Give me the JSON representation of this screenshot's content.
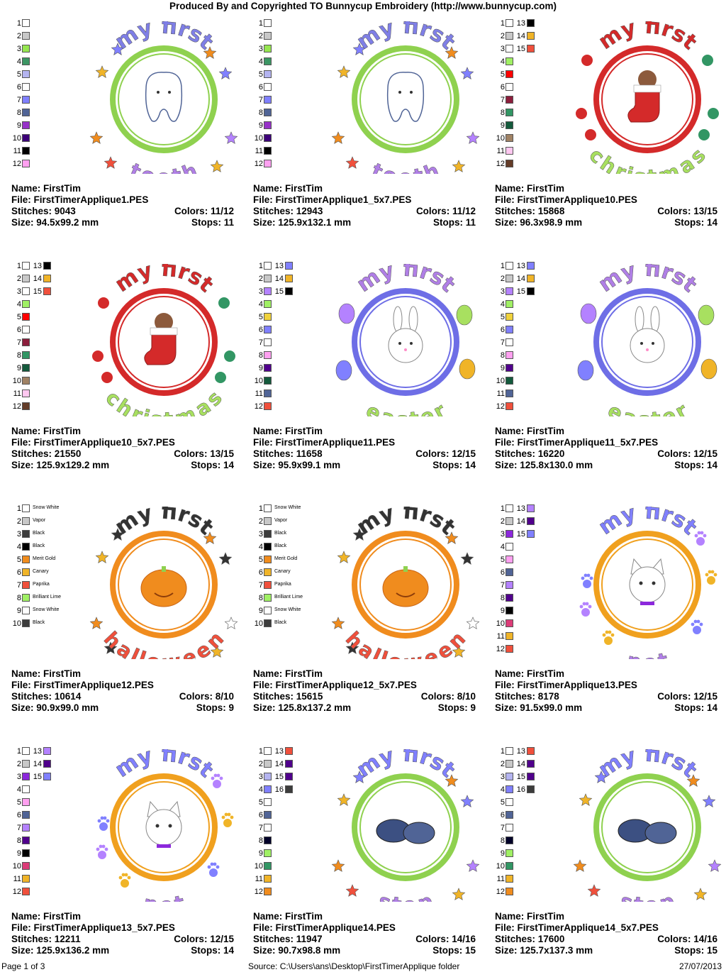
{
  "header": "Produced By and Copyrighted TO Bunnycup Embroidery (http://www.bunnycup.com)",
  "labels": {
    "name": "Name:",
    "file": "File:",
    "stitches": "Stitches:",
    "colors": "Colors:",
    "size": "Size:",
    "stops": "Stops:"
  },
  "designs": [
    {
      "name": "FirstTim",
      "file": "FirstTimerApplique1.PES",
      "stitches": "9043",
      "colors": "11/12",
      "size": "94.5x99.2 mm",
      "stops": "11",
      "art": {
        "top": "my first",
        "bottom": "tooth",
        "ring": "#8fd14f",
        "center": "tooth",
        "decor": "stars",
        "topColor": "#7f7fe6",
        "bottomColor": "#b07fe6"
      },
      "swatches": [
        {
          "n": "1",
          "c": "#ffffff"
        },
        {
          "n": "2",
          "c": "#c8c8c8"
        },
        {
          "n": "3",
          "c": "#96e650"
        },
        {
          "n": "4",
          "c": "#3c9664"
        },
        {
          "n": "5",
          "c": "#b4b4f0"
        },
        {
          "n": "6",
          "c": "#ffffff"
        },
        {
          "n": "7",
          "c": "#8080ff"
        },
        {
          "n": "8",
          "c": "#506496"
        },
        {
          "n": "9",
          "c": "#9632c8"
        },
        {
          "n": "10",
          "c": "#3c0078"
        },
        {
          "n": "11",
          "c": "#000000"
        },
        {
          "n": "12",
          "c": "#ffa0f0"
        }
      ]
    },
    {
      "name": "FirstTim",
      "file": "FirstTimerApplique1_5x7.PES",
      "stitches": "12943",
      "colors": "11/12",
      "size": "125.9x132.1 mm",
      "stops": "11",
      "art": {
        "top": "my first",
        "bottom": "tooth",
        "ring": "#8fd14f",
        "center": "tooth",
        "decor": "stars",
        "topColor": "#7f7fe6",
        "bottomColor": "#b07fe6"
      },
      "swatches": [
        {
          "n": "1",
          "c": "#ffffff"
        },
        {
          "n": "2",
          "c": "#c8c8c8"
        },
        {
          "n": "3",
          "c": "#96e650"
        },
        {
          "n": "4",
          "c": "#3c9664"
        },
        {
          "n": "5",
          "c": "#b4b4f0"
        },
        {
          "n": "6",
          "c": "#ffffff"
        },
        {
          "n": "7",
          "c": "#8080ff"
        },
        {
          "n": "8",
          "c": "#506496"
        },
        {
          "n": "9",
          "c": "#9632c8"
        },
        {
          "n": "10",
          "c": "#3c0078"
        },
        {
          "n": "11",
          "c": "#000000"
        },
        {
          "n": "12",
          "c": "#ffa0f0"
        }
      ]
    },
    {
      "name": "FirstTim",
      "file": "FirstTimerApplique10.PES",
      "stitches": "15868",
      "colors": "13/15",
      "size": "96.3x98.9 mm",
      "stops": "14",
      "art": {
        "top": "my first",
        "bottom": "christmas",
        "ring": "#d42a2a",
        "center": "stocking",
        "decor": "candy",
        "topColor": "#d42a2a",
        "bottomColor": "#a8e060"
      },
      "swatches": [
        {
          "n": "1",
          "c": "#ffffff",
          "n2": "13",
          "c2": "#000000"
        },
        {
          "n": "2",
          "c": "#c8c8c8",
          "n2": "14",
          "c2": "#f0b428"
        },
        {
          "n": "3",
          "c": "#ffffff",
          "n2": "15",
          "c2": "#f0503c"
        },
        {
          "n": "4",
          "c": "#a0f064"
        },
        {
          "n": "5",
          "c": "#ff0000"
        },
        {
          "n": "6",
          "c": "#ffffff"
        },
        {
          "n": "7",
          "c": "#8c1e3c"
        },
        {
          "n": "8",
          "c": "#329664"
        },
        {
          "n": "9",
          "c": "#145a3c"
        },
        {
          "n": "10",
          "c": "#a08264"
        },
        {
          "n": "11",
          "c": "#ffc8f0"
        },
        {
          "n": "12",
          "c": "#643c28"
        }
      ]
    },
    {
      "name": "FirstTim",
      "file": "FirstTimerApplique10_5x7.PES",
      "stitches": "21550",
      "colors": "13/15",
      "size": "125.9x129.2 mm",
      "stops": "14",
      "art": {
        "top": "my first",
        "bottom": "christmas",
        "ring": "#d42a2a",
        "center": "stocking",
        "decor": "candy",
        "topColor": "#d42a2a",
        "bottomColor": "#a8e060"
      },
      "swatches": [
        {
          "n": "1",
          "c": "#ffffff",
          "n2": "13",
          "c2": "#000000"
        },
        {
          "n": "2",
          "c": "#c8c8c8",
          "n2": "14",
          "c2": "#f0b428"
        },
        {
          "n": "3",
          "c": "#ffffff",
          "n2": "15",
          "c2": "#f0503c"
        },
        {
          "n": "4",
          "c": "#a0f064"
        },
        {
          "n": "5",
          "c": "#ff0000"
        },
        {
          "n": "6",
          "c": "#ffffff"
        },
        {
          "n": "7",
          "c": "#8c1e3c"
        },
        {
          "n": "8",
          "c": "#329664"
        },
        {
          "n": "9",
          "c": "#145a3c"
        },
        {
          "n": "10",
          "c": "#a08264"
        },
        {
          "n": "11",
          "c": "#ffc8f0"
        },
        {
          "n": "12",
          "c": "#643c28"
        }
      ]
    },
    {
      "name": "FirstTim",
      "file": "FirstTimerApplique11.PES",
      "stitches": "11658",
      "colors": "12/15",
      "size": "95.9x99.1 mm",
      "stops": "14",
      "art": {
        "top": "my first",
        "bottom": "easter",
        "ring": "#6e6ee6",
        "center": "bunny",
        "decor": "eggs",
        "topColor": "#b07fe6",
        "bottomColor": "#a8e060"
      },
      "swatches": [
        {
          "n": "1",
          "c": "#ffffff",
          "n2": "13",
          "c2": "#8080ff"
        },
        {
          "n": "2",
          "c": "#c8c8c8",
          "n2": "14",
          "c2": "#f0b428"
        },
        {
          "n": "3",
          "c": "#b482ff",
          "n2": "15",
          "c2": "#000000"
        },
        {
          "n": "4",
          "c": "#a0f064"
        },
        {
          "n": "5",
          "c": "#f0d23c"
        },
        {
          "n": "6",
          "c": "#8080ff"
        },
        {
          "n": "7",
          "c": "#ffffff"
        },
        {
          "n": "8",
          "c": "#ffa0f0"
        },
        {
          "n": "9",
          "c": "#50008c"
        },
        {
          "n": "10",
          "c": "#145a3c"
        },
        {
          "n": "11",
          "c": "#506496"
        },
        {
          "n": "12",
          "c": "#f0503c"
        }
      ]
    },
    {
      "name": "FirstTim",
      "file": "FirstTimerApplique11_5x7.PES",
      "stitches": "16220",
      "colors": "12/15",
      "size": "125.8x130.0 mm",
      "stops": "14",
      "art": {
        "top": "my first",
        "bottom": "easter",
        "ring": "#6e6ee6",
        "center": "bunny",
        "decor": "eggs",
        "topColor": "#b07fe6",
        "bottomColor": "#a8e060"
      },
      "swatches": [
        {
          "n": "1",
          "c": "#ffffff",
          "n2": "13",
          "c2": "#8080ff"
        },
        {
          "n": "2",
          "c": "#c8c8c8",
          "n2": "14",
          "c2": "#f0b428"
        },
        {
          "n": "3",
          "c": "#b482ff",
          "n2": "15",
          "c2": "#000000"
        },
        {
          "n": "4",
          "c": "#a0f064"
        },
        {
          "n": "5",
          "c": "#f0d23c"
        },
        {
          "n": "6",
          "c": "#8080ff"
        },
        {
          "n": "7",
          "c": "#ffffff"
        },
        {
          "n": "8",
          "c": "#ffa0f0"
        },
        {
          "n": "9",
          "c": "#50008c"
        },
        {
          "n": "10",
          "c": "#145a3c"
        },
        {
          "n": "11",
          "c": "#506496"
        },
        {
          "n": "12",
          "c": "#f0503c"
        }
      ]
    },
    {
      "name": "FirstTim",
      "file": "FirstTimerApplique12.PES",
      "stitches": "10614",
      "colors": "8/10",
      "size": "90.9x99.0 mm",
      "stops": "9",
      "art": {
        "top": "my first",
        "bottom": "halloween",
        "ring": "#f08c1e",
        "center": "pumpkin",
        "decor": "stars",
        "topColor": "#333333",
        "bottomColor": "#f0503c"
      },
      "swatches": [
        {
          "n": "1",
          "c": "#ffffff",
          "t": "Snow White"
        },
        {
          "n": "2",
          "c": "#c8c8c8",
          "t": "Vapor"
        },
        {
          "n": "3",
          "c": "#3c3c3c",
          "t": "Black"
        },
        {
          "n": "4",
          "c": "#000000",
          "t": "Black"
        },
        {
          "n": "5",
          "c": "#f08c1e",
          "t": "Merit Gold"
        },
        {
          "n": "6",
          "c": "#f0b428",
          "t": "Canary"
        },
        {
          "n": "7",
          "c": "#f0503c",
          "t": "Paprika"
        },
        {
          "n": "8",
          "c": "#a0f064",
          "t": "Brilliant Lime"
        },
        {
          "n": "9",
          "c": "#ffffff",
          "t": "Snow White"
        },
        {
          "n": "10",
          "c": "#3c3c3c",
          "t": "Black"
        }
      ]
    },
    {
      "name": "FirstTim",
      "file": "FirstTimerApplique12_5x7.PES",
      "stitches": "15615",
      "colors": "8/10",
      "size": "125.8x137.2 mm",
      "stops": "9",
      "art": {
        "top": "my first",
        "bottom": "halloween",
        "ring": "#f08c1e",
        "center": "pumpkin",
        "decor": "stars",
        "topColor": "#333333",
        "bottomColor": "#f0503c"
      },
      "swatches": [
        {
          "n": "1",
          "c": "#ffffff",
          "t": "Snow White"
        },
        {
          "n": "2",
          "c": "#c8c8c8",
          "t": "Vapor"
        },
        {
          "n": "3",
          "c": "#3c3c3c",
          "t": "Black"
        },
        {
          "n": "4",
          "c": "#000000",
          "t": "Black"
        },
        {
          "n": "5",
          "c": "#f08c1e",
          "t": "Merit Gold"
        },
        {
          "n": "6",
          "c": "#f0b428",
          "t": "Canary"
        },
        {
          "n": "7",
          "c": "#f0503c",
          "t": "Paprika"
        },
        {
          "n": "8",
          "c": "#a0f064",
          "t": "Brilliant Lime"
        },
        {
          "n": "9",
          "c": "#ffffff",
          "t": "Snow White"
        },
        {
          "n": "10",
          "c": "#3c3c3c",
          "t": "Black"
        }
      ]
    },
    {
      "name": "FirstTim",
      "file": "FirstTimerApplique13.PES",
      "stitches": "8178",
      "colors": "12/15",
      "size": "91.5x99.0 mm",
      "stops": "14",
      "art": {
        "top": "my first",
        "bottom": "pet",
        "ring": "#f0a01e",
        "center": "cat",
        "decor": "paws",
        "topColor": "#8080ff",
        "bottomColor": "#b07fe6"
      },
      "swatches": [
        {
          "n": "1",
          "c": "#ffffff",
          "n2": "13",
          "c2": "#b482ff"
        },
        {
          "n": "2",
          "c": "#c8c8c8",
          "n2": "14",
          "c2": "#50008c"
        },
        {
          "n": "3",
          "c": "#8c28dc",
          "n2": "15",
          "c2": "#8080ff"
        },
        {
          "n": "4",
          "c": "#ffffff"
        },
        {
          "n": "5",
          "c": "#ffa0f0"
        },
        {
          "n": "6",
          "c": "#506496"
        },
        {
          "n": "7",
          "c": "#b482ff"
        },
        {
          "n": "8",
          "c": "#50008c"
        },
        {
          "n": "9",
          "c": "#000000"
        },
        {
          "n": "10",
          "c": "#dc3c78"
        },
        {
          "n": "11",
          "c": "#f0b428"
        },
        {
          "n": "12",
          "c": "#f0503c"
        }
      ]
    },
    {
      "name": "FirstTim",
      "file": "FirstTimerApplique13_5x7.PES",
      "stitches": "12211",
      "colors": "12/15",
      "size": "125.9x136.2 mm",
      "stops": "14",
      "art": {
        "top": "my first",
        "bottom": "pet",
        "ring": "#f0a01e",
        "center": "cat",
        "decor": "paws",
        "topColor": "#8080ff",
        "bottomColor": "#b07fe6"
      },
      "swatches": [
        {
          "n": "1",
          "c": "#ffffff",
          "n2": "13",
          "c2": "#b482ff"
        },
        {
          "n": "2",
          "c": "#c8c8c8",
          "n2": "14",
          "c2": "#50008c"
        },
        {
          "n": "3",
          "c": "#8c28dc",
          "n2": "15",
          "c2": "#8080ff"
        },
        {
          "n": "4",
          "c": "#ffffff"
        },
        {
          "n": "5",
          "c": "#ffa0f0"
        },
        {
          "n": "6",
          "c": "#506496"
        },
        {
          "n": "7",
          "c": "#b482ff"
        },
        {
          "n": "8",
          "c": "#50008c"
        },
        {
          "n": "9",
          "c": "#000000"
        },
        {
          "n": "10",
          "c": "#dc3c78"
        },
        {
          "n": "11",
          "c": "#f0b428"
        },
        {
          "n": "12",
          "c": "#f0503c"
        }
      ]
    },
    {
      "name": "FirstTim",
      "file": "FirstTimerApplique14.PES",
      "stitches": "11947",
      "colors": "14/16",
      "size": "90.7x98.8 mm",
      "stops": "15",
      "art": {
        "top": "my first",
        "bottom": "step",
        "ring": "#8fd14f",
        "center": "shoes",
        "decor": "stars",
        "topColor": "#8080ff",
        "bottomColor": "#b07fe6"
      },
      "swatches": [
        {
          "n": "1",
          "c": "#ffffff",
          "n2": "13",
          "c2": "#f0503c"
        },
        {
          "n": "2",
          "c": "#c8c8c8",
          "n2": "14",
          "c2": "#50008c"
        },
        {
          "n": "3",
          "c": "#b4b4f0",
          "n2": "15",
          "c2": "#50008c"
        },
        {
          "n": "4",
          "c": "#8080ff",
          "n2": "16",
          "c2": "#3c3c3c"
        },
        {
          "n": "5",
          "c": "#ffffff"
        },
        {
          "n": "6",
          "c": "#506496"
        },
        {
          "n": "7",
          "c": "#ffffff"
        },
        {
          "n": "8",
          "c": "#000028"
        },
        {
          "n": "9",
          "c": "#a0f064"
        },
        {
          "n": "10",
          "c": "#329664"
        },
        {
          "n": "11",
          "c": "#f0b428"
        },
        {
          "n": "12",
          "c": "#f08c1e"
        }
      ]
    },
    {
      "name": "FirstTim",
      "file": "FirstTimerApplique14_5x7.PES",
      "stitches": "17600",
      "colors": "14/16",
      "size": "125.7x137.3 mm",
      "stops": "15",
      "art": {
        "top": "my first",
        "bottom": "step",
        "ring": "#8fd14f",
        "center": "shoes",
        "decor": "stars",
        "topColor": "#8080ff",
        "bottomColor": "#b07fe6"
      },
      "swatches": [
        {
          "n": "1",
          "c": "#ffffff",
          "n2": "13",
          "c2": "#f0503c"
        },
        {
          "n": "2",
          "c": "#c8c8c8",
          "n2": "14",
          "c2": "#50008c"
        },
        {
          "n": "3",
          "c": "#b4b4f0",
          "n2": "15",
          "c2": "#50008c"
        },
        {
          "n": "4",
          "c": "#8080ff",
          "n2": "16",
          "c2": "#3c3c3c"
        },
        {
          "n": "5",
          "c": "#ffffff"
        },
        {
          "n": "6",
          "c": "#506496"
        },
        {
          "n": "7",
          "c": "#ffffff"
        },
        {
          "n": "8",
          "c": "#000028"
        },
        {
          "n": "9",
          "c": "#a0f064"
        },
        {
          "n": "10",
          "c": "#329664"
        },
        {
          "n": "11",
          "c": "#f0b428"
        },
        {
          "n": "12",
          "c": "#f08c1e"
        }
      ]
    }
  ],
  "footer": {
    "page": "Page 1 of 3",
    "source": "Source:  C:\\Users\\ans\\Desktop\\FirstTimerApplique folder",
    "date": "27/07/2013"
  }
}
